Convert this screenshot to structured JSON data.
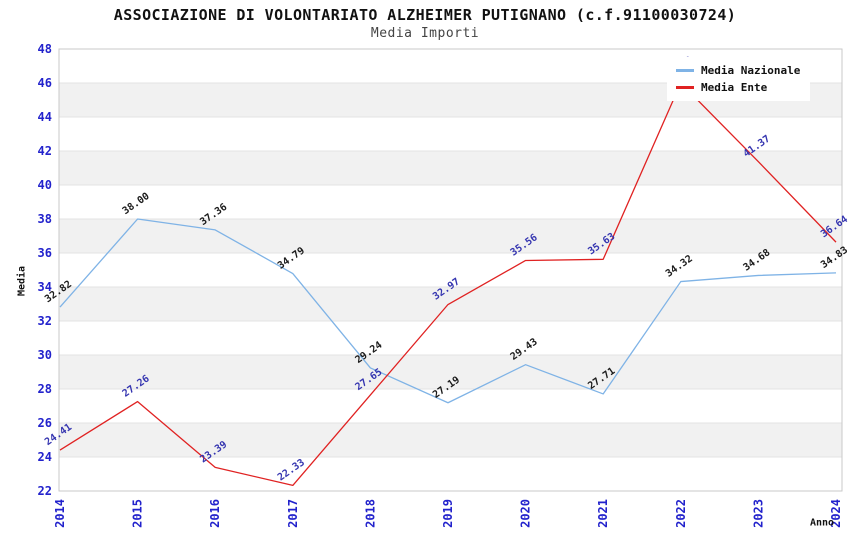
{
  "header": {
    "title": "ASSOCIAZIONE DI VOLONTARIATO ALZHEIMER PUTIGNANO (c.f.91100030724)",
    "subtitle": "Media Importi"
  },
  "chart_data": {
    "type": "line",
    "title": "ASSOCIAZIONE DI VOLONTARIATO ALZHEIMER PUTIGNANO (c.f.91100030724)",
    "subtitle": "Media Importi",
    "xlabel": "Anno",
    "ylabel": "Media",
    "x": [
      "2014",
      "2015",
      "2016",
      "2017",
      "2018",
      "2019",
      "2020",
      "2021",
      "2022",
      "2023",
      "2024"
    ],
    "ylim": [
      22,
      48
    ],
    "ytick_step": 2,
    "grid": "horizontal-alternating-bands",
    "legend_position": "top-right",
    "series": [
      {
        "name": "Media Nazionale",
        "color": "#7fb3e6",
        "label_color": "#1a1a1a",
        "values": [
          32.82,
          38.0,
          37.36,
          34.79,
          29.24,
          27.19,
          29.43,
          27.71,
          34.32,
          34.68,
          34.83
        ]
      },
      {
        "name": "Media Ente",
        "color": "#e02222",
        "label_color": "#3535b0",
        "values": [
          24.41,
          27.26,
          23.39,
          22.33,
          27.65,
          32.97,
          35.56,
          35.63,
          46.0,
          41.37,
          36.64
        ]
      }
    ],
    "colors": {
      "tick_label": "#2222cc",
      "band": "#f1f1f1",
      "gridline": "#e3e3e3",
      "plot_border": "#c9c9c9",
      "background": "#ffffff"
    }
  }
}
